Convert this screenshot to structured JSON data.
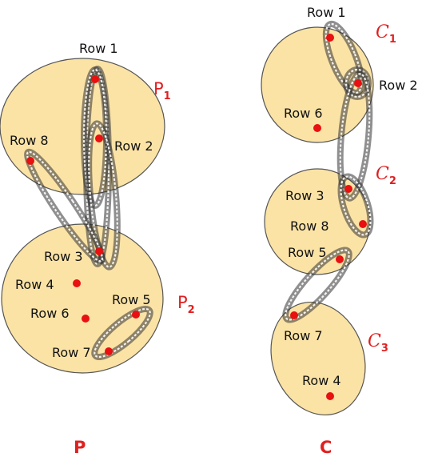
{
  "panels": {
    "left": {
      "label": "P",
      "clusters": [
        {
          "name": "P",
          "sub": "1"
        },
        {
          "name": "P",
          "sub": "2"
        }
      ],
      "rows": {
        "row1": "Row 1",
        "row2": "Row 2",
        "row8": "Row 8",
        "row3": "Row 3",
        "row4": "Row 4",
        "row6": "Row 6",
        "row5": "Row 5",
        "row7": "Row 7"
      }
    },
    "right": {
      "label": "C",
      "clusters": [
        {
          "name": "C",
          "sub": "1"
        },
        {
          "name": "C",
          "sub": "2"
        },
        {
          "name": "C",
          "sub": "3"
        }
      ],
      "rows": {
        "row1": "Row 1",
        "row2": "Row 2",
        "row6": "Row 6",
        "row3": "Row 3",
        "row8": "Row 8",
        "row5": "Row 5",
        "row7": "Row 7",
        "row4": "Row 4"
      }
    }
  },
  "colors": {
    "cluster_fill": "#fbe3a6",
    "dot": "#e81010",
    "label_red": "#e02020"
  }
}
